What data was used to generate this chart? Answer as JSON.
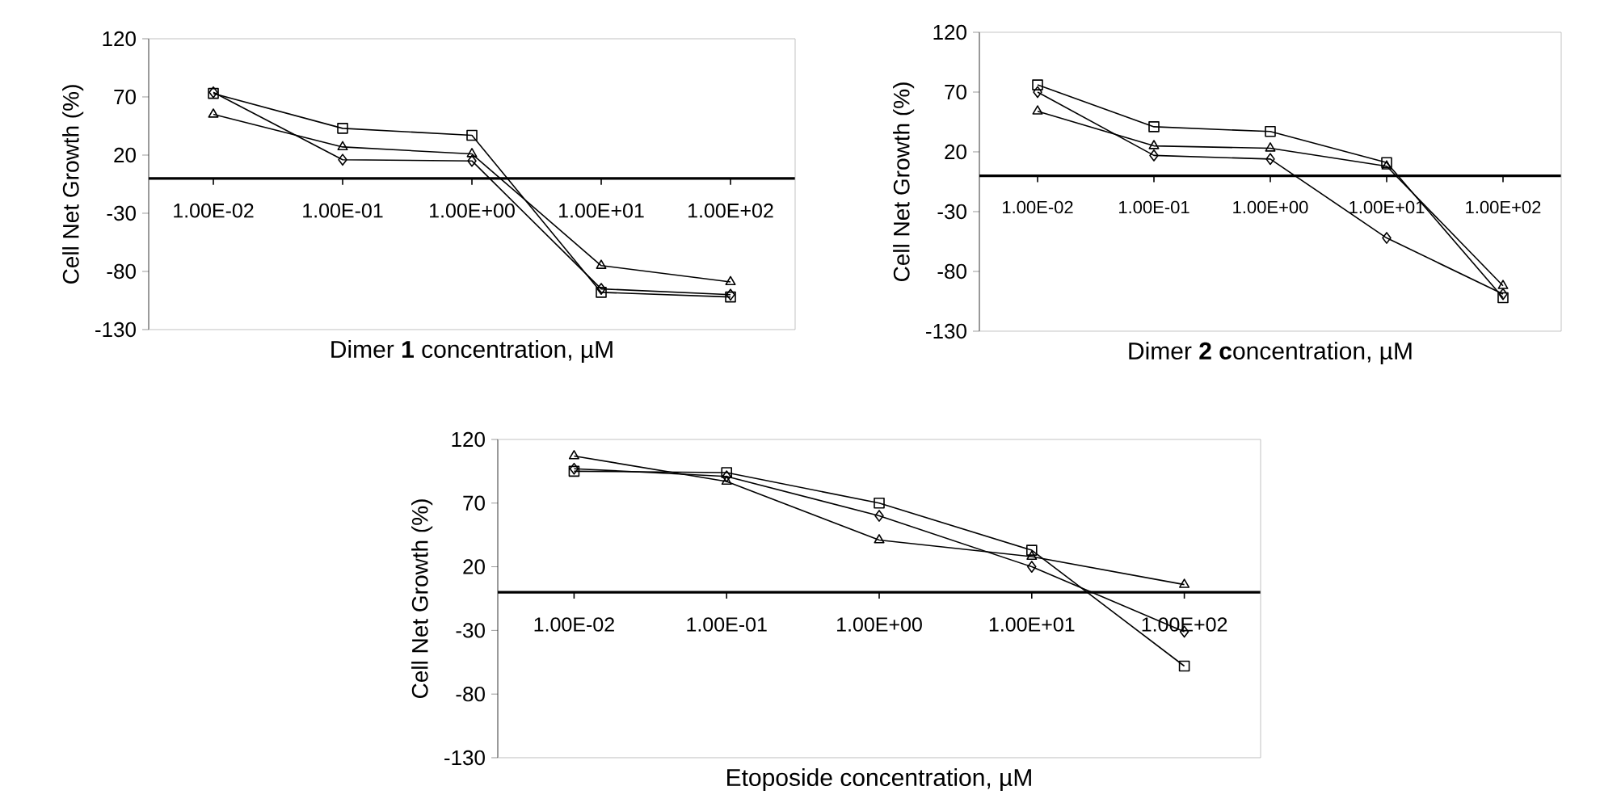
{
  "chart_data": [
    {
      "type": "line",
      "xlabel": "Dimer **1** concentration, µM",
      "ylabel": "Cell Net Growth (%)",
      "categories": [
        "1.00E-02",
        "1.00E-01",
        "1.00E+00",
        "1.00E+01",
        "1.00E+02"
      ],
      "ylim": [
        -130,
        120
      ],
      "yticks": [
        -130,
        -80,
        -30,
        20,
        70,
        120
      ],
      "series": [
        {
          "color": "#000000",
          "marker": "square",
          "values": [
            73,
            43,
            37,
            -98,
            -102
          ]
        },
        {
          "color": "#000000",
          "marker": "triangle",
          "values": [
            55,
            27,
            21,
            -75,
            -89
          ]
        },
        {
          "color": "#000000",
          "marker": "diamond",
          "values": [
            74,
            16,
            15,
            -95,
            -100
          ]
        }
      ]
    },
    {
      "type": "line",
      "xlabel": "Dimer **2 c**oncentration, µM",
      "ylabel": "Cell Net Growth (%)",
      "categories": [
        "1.00E-02",
        "1.00E-01",
        "1.00E+00",
        "1.00E+01",
        "1.00E+02"
      ],
      "ylim": [
        -130,
        120
      ],
      "yticks": [
        -130,
        -80,
        -30,
        20,
        70,
        120
      ],
      "series": [
        {
          "color": "#000000",
          "marker": "square",
          "values": [
            76,
            41,
            37,
            11,
            -102
          ]
        },
        {
          "color": "#000000",
          "marker": "triangle",
          "values": [
            54,
            25,
            23,
            8,
            -92
          ]
        },
        {
          "color": "#000000",
          "marker": "diamond",
          "values": [
            70,
            17,
            14,
            -52,
            -99
          ]
        }
      ]
    },
    {
      "type": "line",
      "xlabel": "Etoposide concentration, µM",
      "ylabel": "Cell Net Growth (%)",
      "categories": [
        "1.00E-02",
        "1.00E-01",
        "1.00E+00",
        "1.00E+01",
        "1.00E+02"
      ],
      "ylim": [
        -130,
        120
      ],
      "yticks": [
        -130,
        -80,
        -30,
        20,
        70,
        120
      ],
      "series": [
        {
          "color": "#000000",
          "marker": "square",
          "values": [
            95,
            94,
            70,
            33,
            -58
          ]
        },
        {
          "color": "#000000",
          "marker": "triangle",
          "values": [
            107,
            87,
            41,
            28,
            6
          ]
        },
        {
          "color": "#000000",
          "marker": "diamond",
          "values": [
            97,
            91,
            60,
            20,
            -31
          ]
        }
      ]
    }
  ]
}
